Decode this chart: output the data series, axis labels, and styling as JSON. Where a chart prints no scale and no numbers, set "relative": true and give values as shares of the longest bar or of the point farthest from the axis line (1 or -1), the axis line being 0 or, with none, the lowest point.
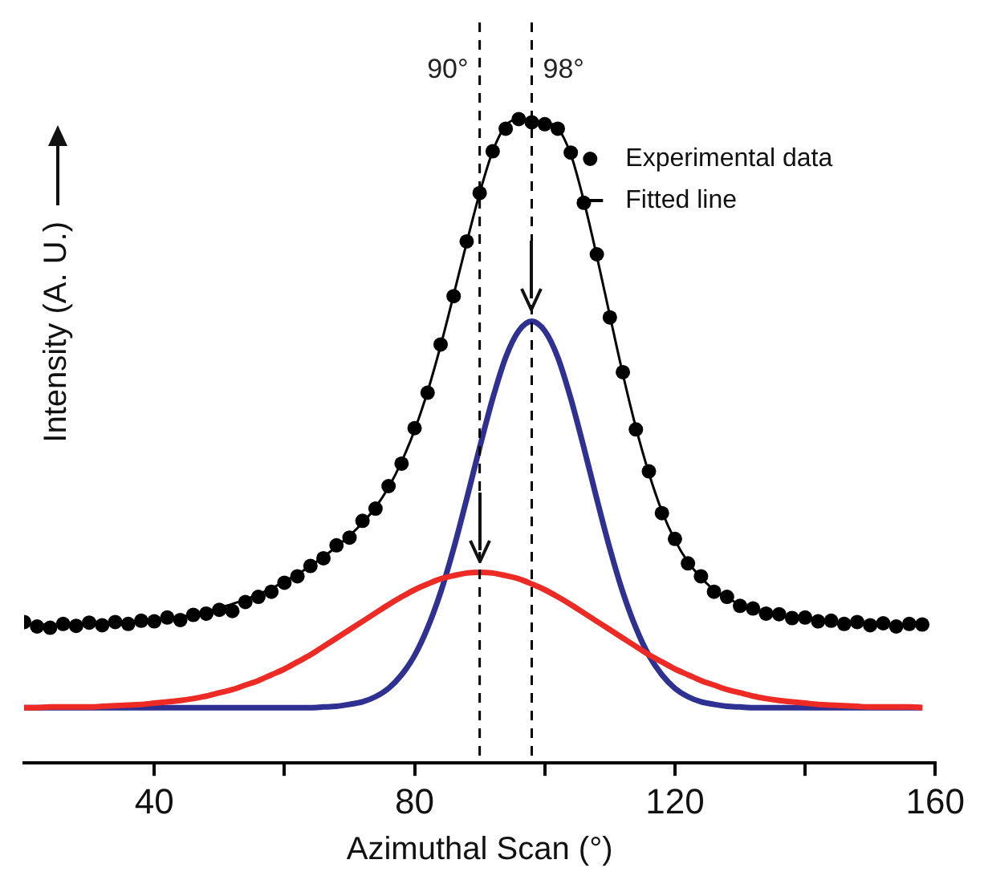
{
  "chart_data": {
    "type": "line",
    "xlabel": "Azimuthal Scan (°)",
    "ylabel": "Intensity (A. U.)",
    "relative": true,
    "tick_labels": "x",
    "legend": "top right",
    "xlim": [
      20,
      160
    ],
    "xticks": [
      40,
      {
        "value": 60,
        "label": null
      },
      80,
      {
        "value": 100,
        "label": null
      },
      120,
      {
        "value": 140,
        "label": null
      },
      160
    ],
    "x": [
      20,
      22,
      24,
      26,
      28,
      30,
      32,
      34,
      36,
      38,
      40,
      42,
      44,
      46,
      48,
      50,
      52,
      54,
      56,
      58,
      60,
      62,
      64,
      66,
      68,
      70,
      72,
      74,
      76,
      78,
      80,
      82,
      84,
      86,
      88,
      90,
      92,
      94,
      96,
      98,
      100,
      102,
      104,
      106,
      108,
      110,
      112,
      114,
      116,
      118,
      120,
      122,
      124,
      126,
      128,
      130,
      132,
      134,
      136,
      138,
      140,
      142,
      144,
      146,
      148,
      150,
      152,
      154,
      156,
      158
    ],
    "series": [
      {
        "name": "Experimental data",
        "type": "scatter",
        "marker": "circle",
        "color": "#000000",
        "values": [
          0.219,
          0.212,
          0.21,
          0.216,
          0.213,
          0.218,
          0.214,
          0.219,
          0.216,
          0.221,
          0.22,
          0.226,
          0.222,
          0.23,
          0.232,
          0.238,
          0.236,
          0.25,
          0.258,
          0.266,
          0.28,
          0.29,
          0.306,
          0.318,
          0.338,
          0.35,
          0.376,
          0.395,
          0.43,
          0.465,
          0.52,
          0.575,
          0.65,
          0.725,
          0.81,
          0.885,
          0.95,
          0.985,
          1.0,
          0.995,
          0.992,
          0.985,
          0.948,
          0.87,
          0.79,
          0.692,
          0.607,
          0.518,
          0.453,
          0.388,
          0.348,
          0.31,
          0.29,
          0.266,
          0.258,
          0.244,
          0.24,
          0.232,
          0.231,
          0.225,
          0.226,
          0.22,
          0.221,
          0.216,
          0.219,
          0.214,
          0.217,
          0.212,
          0.216,
          0.215
        ]
      },
      {
        "name": "Fitted line",
        "marker": "none",
        "color": "#000000",
        "values": [
          0.215,
          0.215,
          0.215,
          0.215,
          0.216,
          0.216,
          0.217,
          0.218,
          0.219,
          0.22,
          0.222,
          0.224,
          0.227,
          0.231,
          0.235,
          0.241,
          0.247,
          0.254,
          0.262,
          0.271,
          0.282,
          0.293,
          0.306,
          0.32,
          0.336,
          0.353,
          0.373,
          0.397,
          0.428,
          0.468,
          0.517,
          0.577,
          0.648,
          0.727,
          0.808,
          0.885,
          0.95,
          0.99,
          1.0,
          0.998,
          0.995,
          0.986,
          0.945,
          0.873,
          0.787,
          0.695,
          0.604,
          0.521,
          0.45,
          0.391,
          0.346,
          0.312,
          0.288,
          0.269,
          0.257,
          0.246,
          0.24,
          0.234,
          0.23,
          0.227,
          0.224,
          0.222,
          0.22,
          0.218,
          0.217,
          0.216,
          0.215,
          0.215,
          0.215,
          0.214
        ]
      },
      {
        "marker": "none",
        "color": "#ee2a24",
        "values": [
          0.086,
          0.086,
          0.087,
          0.087,
          0.087,
          0.087,
          0.088,
          0.089,
          0.09,
          0.091,
          0.093,
          0.095,
          0.097,
          0.1,
          0.104,
          0.109,
          0.114,
          0.121,
          0.128,
          0.137,
          0.146,
          0.157,
          0.168,
          0.181,
          0.194,
          0.207,
          0.22,
          0.233,
          0.246,
          0.258,
          0.269,
          0.278,
          0.286,
          0.291,
          0.295,
          0.296,
          0.295,
          0.291,
          0.286,
          0.278,
          0.269,
          0.258,
          0.246,
          0.233,
          0.22,
          0.207,
          0.194,
          0.181,
          0.168,
          0.157,
          0.146,
          0.137,
          0.128,
          0.121,
          0.114,
          0.109,
          0.104,
          0.1,
          0.097,
          0.095,
          0.093,
          0.091,
          0.09,
          0.089,
          0.088,
          0.087,
          0.087,
          0.087,
          0.087,
          0.086
        ]
      },
      {
        "marker": "none",
        "color": "#2e3192",
        "values": [
          0.086,
          0.086,
          0.086,
          0.086,
          0.086,
          0.086,
          0.086,
          0.086,
          0.086,
          0.086,
          0.086,
          0.086,
          0.086,
          0.086,
          0.086,
          0.086,
          0.086,
          0.086,
          0.086,
          0.086,
          0.086,
          0.086,
          0.086,
          0.087,
          0.088,
          0.091,
          0.095,
          0.103,
          0.116,
          0.137,
          0.167,
          0.21,
          0.265,
          0.333,
          0.41,
          0.49,
          0.566,
          0.63,
          0.671,
          0.686,
          0.671,
          0.63,
          0.566,
          0.49,
          0.41,
          0.333,
          0.265,
          0.21,
          0.167,
          0.137,
          0.116,
          0.103,
          0.095,
          0.091,
          0.088,
          0.087,
          0.086,
          0.086,
          0.086,
          0.086,
          0.086,
          0.086,
          0.086,
          0.086,
          0.086,
          0.086,
          0.086,
          0.086,
          0.086,
          0.086
        ]
      }
    ],
    "ref_lines": [
      {
        "axis": "x",
        "value": 90,
        "label": "90°",
        "color": "#000000",
        "line_style": "dashed"
      },
      {
        "axis": "x",
        "value": 98,
        "label": "98°",
        "color": "#000000",
        "line_style": "dashed"
      }
    ]
  }
}
